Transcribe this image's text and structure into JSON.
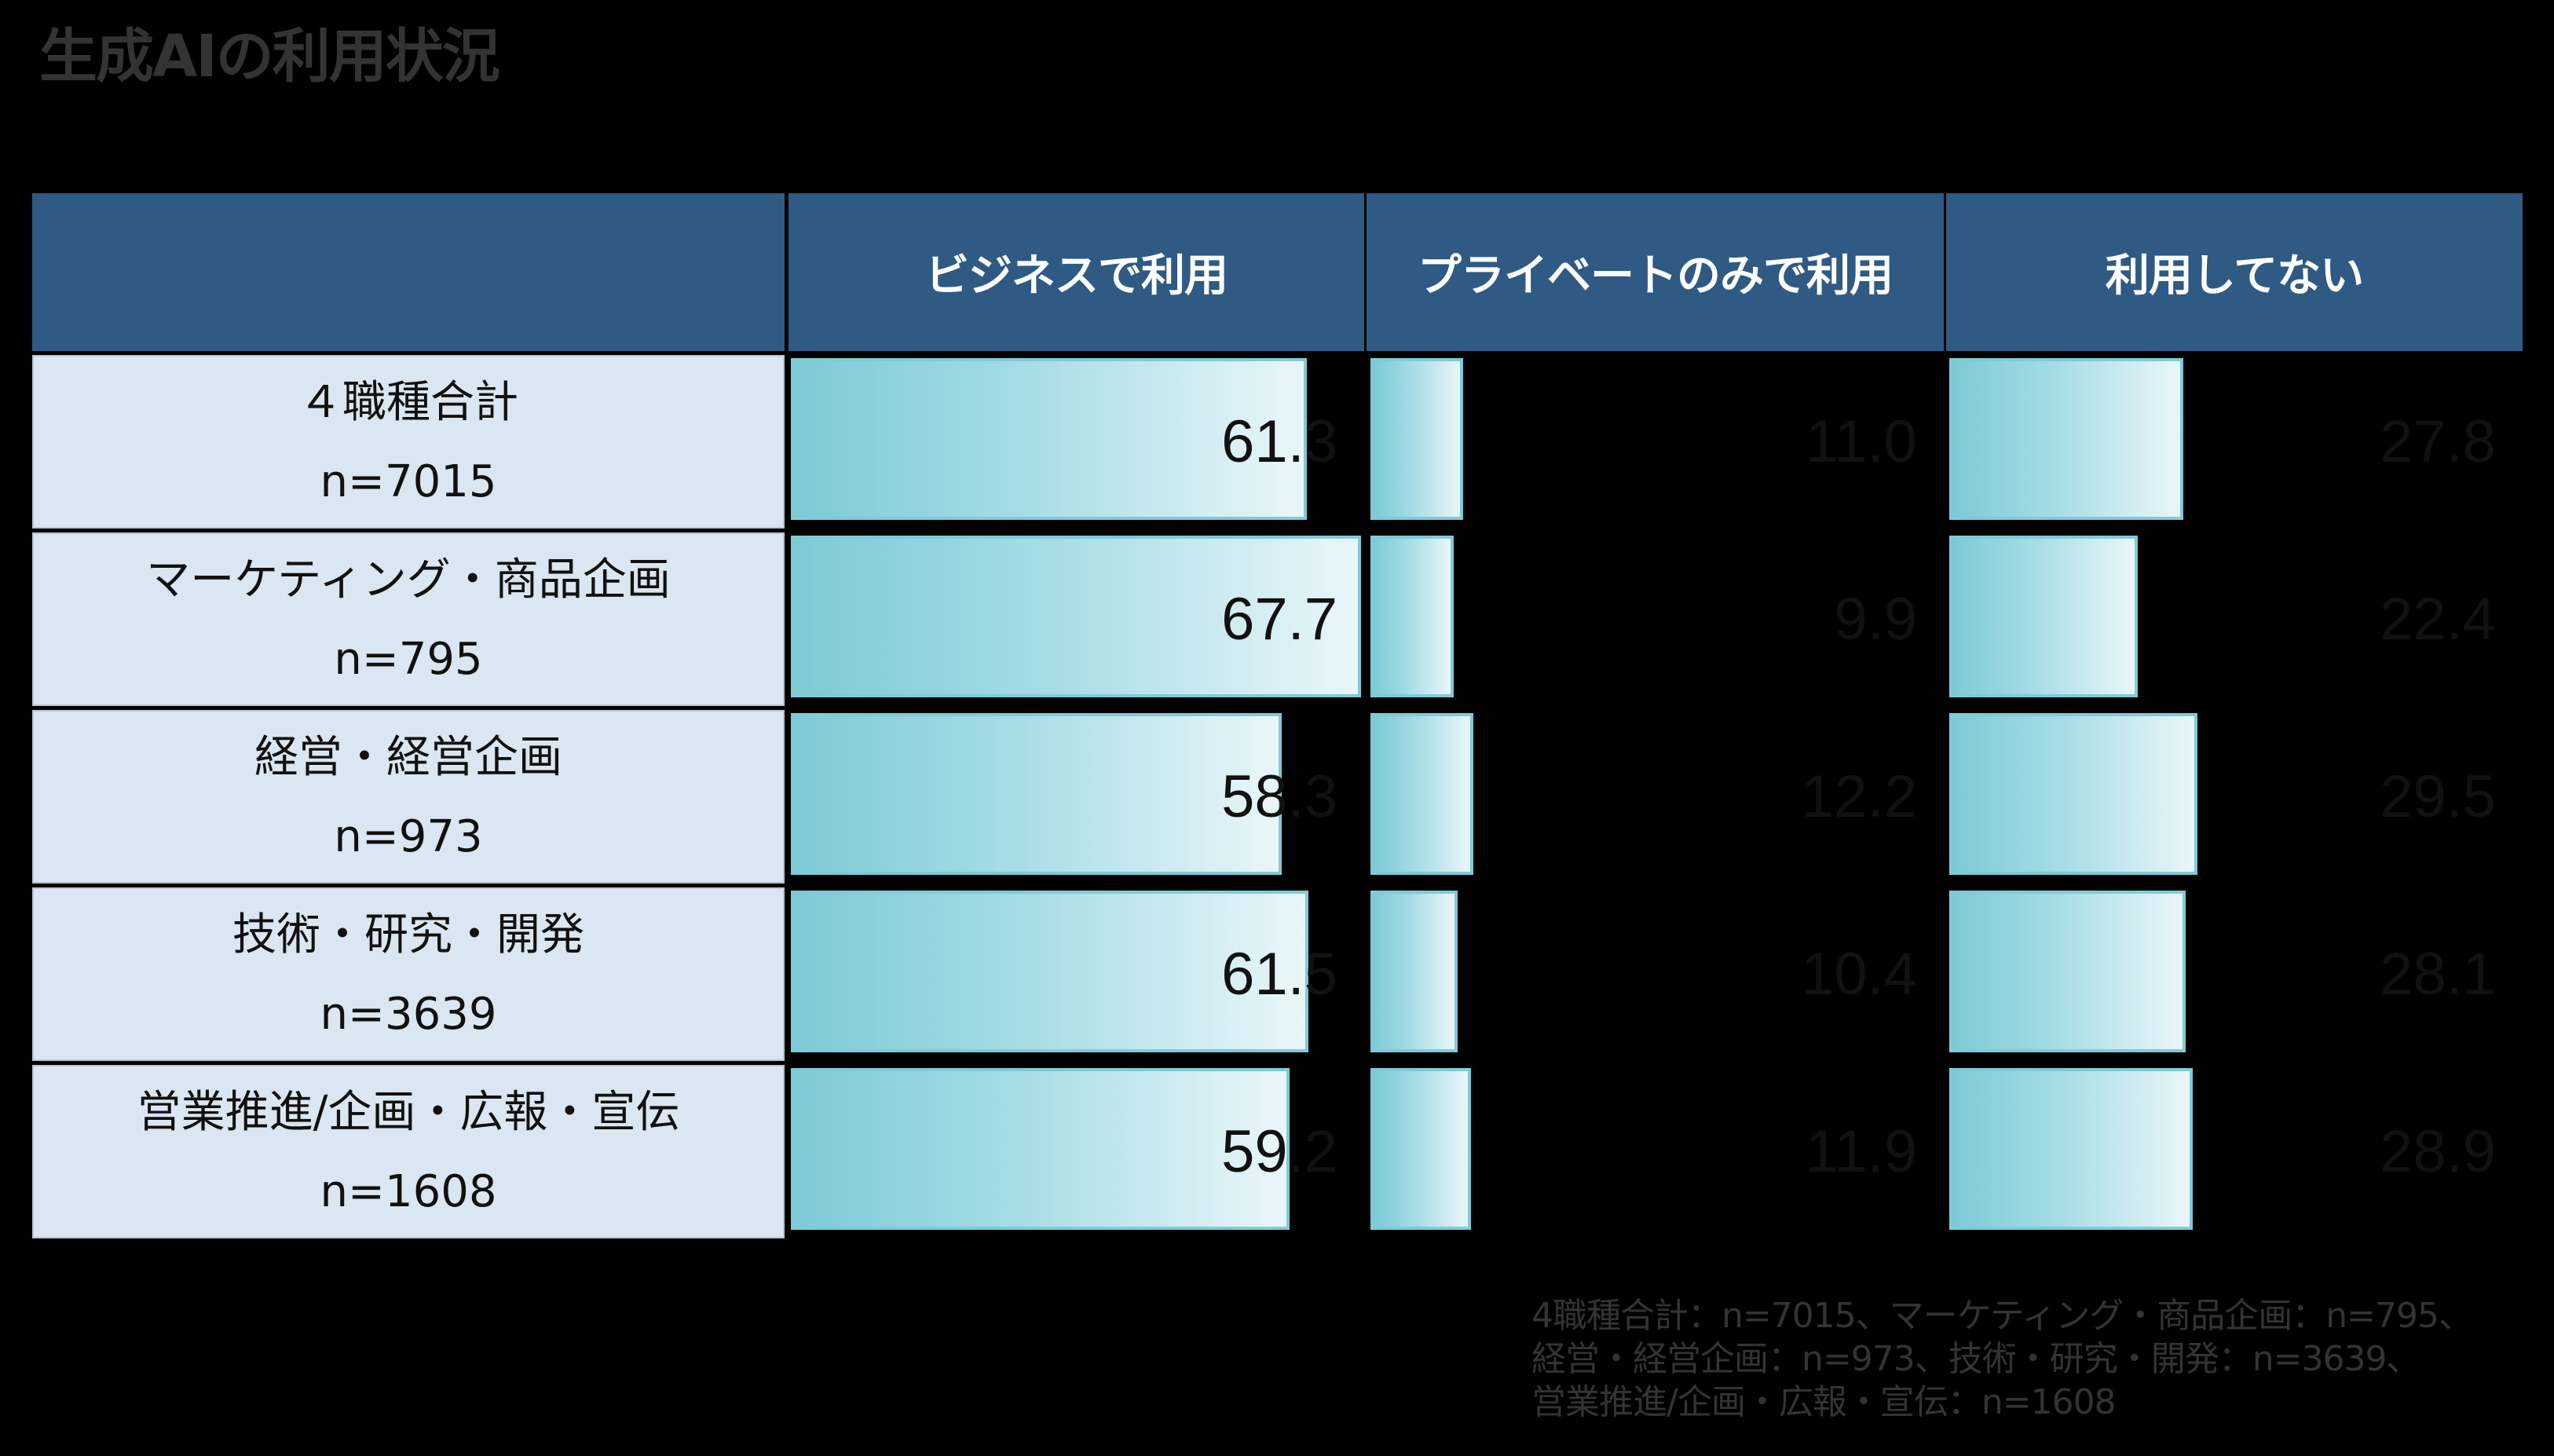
{
  "title": "生成AIの利用状況",
  "table": {
    "headers": [
      "",
      "ビジネスで利用",
      "プライベートのみで利用",
      "利用してない"
    ],
    "rows": [
      {
        "label": "４職種合計",
        "n": "n=7015",
        "business": "61.3",
        "private": "11.0",
        "not_using": "27.8"
      },
      {
        "label": "マーケティング・商品企画",
        "n": "n=795",
        "business": "67.7",
        "private": "9.9",
        "not_using": "22.4"
      },
      {
        "label": "経営・経営企画",
        "n": "n=973",
        "business": "58.3",
        "private": "12.2",
        "not_using": "29.5"
      },
      {
        "label": "技術・研究・開発",
        "n": "n=3639",
        "business": "61.5",
        "private": "10.4",
        "not_using": "28.1"
      },
      {
        "label": "営業推進/企画・広報・宣伝",
        "n": "n=1608",
        "business": "59.2",
        "private": "11.9",
        "not_using": "28.9"
      }
    ]
  },
  "footnote": {
    "lines": [
      "4職種合計：n=7015、マーケティング・商品企画：n=795、",
      "経営・経営企画：n=973、技術・研究・開発：n=3639、",
      "営業推進/企画・広報・宣伝：n=1608"
    ]
  },
  "colors": {
    "header_bg": "#2E5A84",
    "header_text": "#FFFFFF",
    "label_bg": "#DAE6F1",
    "bar_start": "#7CCAD6",
    "bar_end": "#EAF6F9",
    "bar_border": "#7ECBD8",
    "background": "#000000",
    "title_text": "#333333"
  },
  "chart_data": {
    "type": "bar",
    "orientation": "horizontal",
    "title": "生成AIの利用状況",
    "categories": [
      "４職種合計 n=7015",
      "マーケティング・商品企画 n=795",
      "経営・経営企画 n=973",
      "技術・研究・開発 n=3639",
      "営業推進/企画・広報・宣伝 n=1608"
    ],
    "series": [
      {
        "name": "ビジネスで利用",
        "values": [
          61.3,
          67.7,
          58.3,
          61.5,
          59.2
        ]
      },
      {
        "name": "プライベートのみで利用",
        "values": [
          11.0,
          9.9,
          12.2,
          10.4,
          11.9
        ]
      },
      {
        "name": "利用してない",
        "values": [
          27.8,
          22.4,
          29.5,
          28.1,
          28.9
        ]
      }
    ],
    "unit": "%",
    "xlabel": "",
    "ylabel": "",
    "xlim": [
      0,
      100
    ],
    "grid": false,
    "legend": "column headers",
    "note": "4職種合計：n=7015、マーケティング・商品企画：n=795、経営・経営企画：n=973、技術・研究・開発：n=3639、営業推進/企画・広報・宣伝：n=1608"
  }
}
